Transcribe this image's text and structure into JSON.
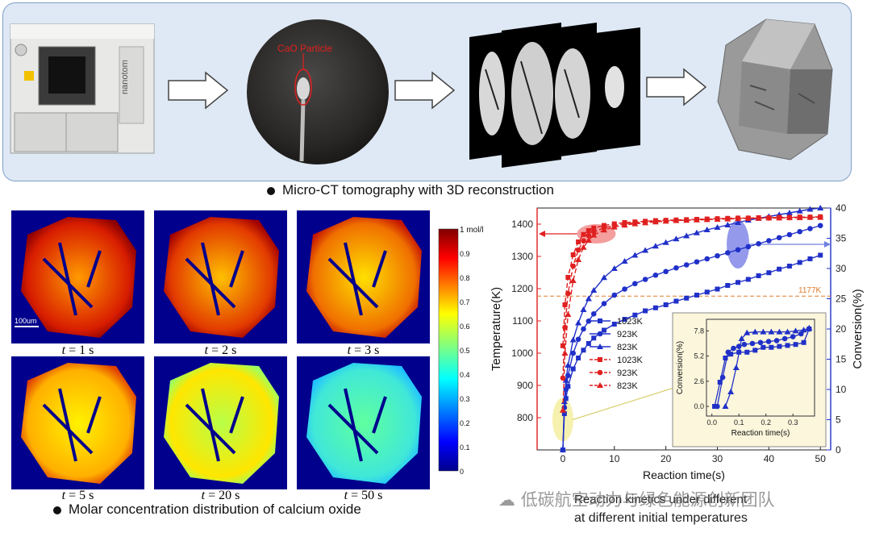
{
  "top_caption": "Micro-CT tomography with 3D reconstruction",
  "machine_brand": "nanotom",
  "sample_label": "CaO Particle",
  "maps": {
    "labels": [
      {
        "t": "t",
        "eq": " = 1 s"
      },
      {
        "t": "t",
        "eq": " = 2 s"
      },
      {
        "t": "t",
        "eq": " = 3 s"
      },
      {
        "t": "t",
        "eq": " = 5 s"
      },
      {
        "t": "t",
        "eq": " = 20 s"
      },
      {
        "t": "t",
        "eq": " = 50 s"
      }
    ],
    "scale_bar": "100um",
    "colorbar_unit": "1 mol/l",
    "colorbar_ticks": [
      "0.9",
      "0.8",
      "0.7",
      "0.6",
      "0.5",
      "0.4",
      "0.3",
      "0.2",
      "0.1",
      "0"
    ],
    "caption": "Molar concentration distribution of calcium oxide"
  },
  "chart_data": {
    "type": "line",
    "xlabel": "Reaction time(s)",
    "ylabel_left": "Temperature(K)",
    "ylabel_right": "Conversion(%)",
    "xlim": [
      -5,
      52
    ],
    "ylim_left": [
      700,
      1450
    ],
    "ylim_right": [
      0,
      40
    ],
    "x_ticks": [
      "0",
      "10",
      "20",
      "30",
      "40",
      "50"
    ],
    "y_left_ticks": [
      "800",
      "900",
      "1000",
      "1100",
      "1200",
      "1300",
      "1400"
    ],
    "y_right_ticks": [
      "0",
      "5",
      "10",
      "15",
      "20",
      "25",
      "30",
      "35",
      "40"
    ],
    "reference_line": {
      "value": 1177,
      "label": "1177K",
      "color": "#e07b2a"
    },
    "colors": {
      "temperature": "#e02020",
      "conversion": "#2030c8"
    },
    "legend": [
      {
        "label": "1023K",
        "marker": "square",
        "style": "solid"
      },
      {
        "label": "923K",
        "marker": "circle",
        "style": "solid"
      },
      {
        "label": "823K",
        "marker": "triangle",
        "style": "solid"
      },
      {
        "label": "1023K",
        "marker": "square",
        "style": "dashed"
      },
      {
        "label": "923K",
        "marker": "circle",
        "style": "dashed"
      },
      {
        "label": "823K",
        "marker": "triangle",
        "style": "dashed"
      }
    ],
    "conversion_series": [
      {
        "name": "1023K",
        "marker": "square",
        "points": [
          [
            0,
            0
          ],
          [
            0.3,
            6
          ],
          [
            0.6,
            8.5
          ],
          [
            1,
            10.5
          ],
          [
            2,
            13.4
          ],
          [
            3,
            15.2
          ],
          [
            4,
            16.5
          ],
          [
            5,
            17.6
          ],
          [
            6,
            18.5
          ],
          [
            8,
            19.8
          ],
          [
            10,
            20.8
          ],
          [
            12,
            21.6
          ],
          [
            14,
            22.3
          ],
          [
            16,
            23
          ],
          [
            18,
            23.5
          ],
          [
            20,
            24
          ],
          [
            22,
            24.6
          ],
          [
            24,
            25.1
          ],
          [
            26,
            25.6
          ],
          [
            28,
            26.1
          ],
          [
            30,
            26.6
          ],
          [
            32,
            27.2
          ],
          [
            34,
            27.7
          ],
          [
            36,
            28.2
          ],
          [
            38,
            28.8
          ],
          [
            40,
            29.3
          ],
          [
            42,
            29.9
          ],
          [
            44,
            30.4
          ],
          [
            46,
            31
          ],
          [
            48,
            31.6
          ],
          [
            50,
            32.2
          ]
        ]
      },
      {
        "name": "923K",
        "marker": "circle",
        "points": [
          [
            0,
            0
          ],
          [
            0.3,
            7
          ],
          [
            0.6,
            10
          ],
          [
            1,
            12.3
          ],
          [
            2,
            16
          ],
          [
            3,
            18.3
          ],
          [
            4,
            20
          ],
          [
            5,
            21.3
          ],
          [
            6,
            22.5
          ],
          [
            8,
            24.2
          ],
          [
            10,
            25.6
          ],
          [
            12,
            26.6
          ],
          [
            14,
            27.5
          ],
          [
            16,
            28.2
          ],
          [
            18,
            28.9
          ],
          [
            20,
            29.5
          ],
          [
            22,
            30.1
          ],
          [
            24,
            30.6
          ],
          [
            26,
            31.1
          ],
          [
            28,
            31.6
          ],
          [
            30,
            32.1
          ],
          [
            32,
            32.6
          ],
          [
            34,
            33.1
          ],
          [
            36,
            33.6
          ],
          [
            38,
            34.1
          ],
          [
            40,
            34.6
          ],
          [
            42,
            35.1
          ],
          [
            44,
            35.6
          ],
          [
            46,
            36.1
          ],
          [
            48,
            36.6
          ],
          [
            50,
            37.1
          ]
        ]
      },
      {
        "name": "823K",
        "marker": "triangle",
        "points": [
          [
            0,
            0
          ],
          [
            0.3,
            8
          ],
          [
            0.6,
            11.5
          ],
          [
            1,
            14
          ],
          [
            2,
            18.2
          ],
          [
            3,
            21
          ],
          [
            4,
            23.2
          ],
          [
            5,
            25
          ],
          [
            6,
            26.4
          ],
          [
            8,
            28.5
          ],
          [
            10,
            30
          ],
          [
            12,
            31.2
          ],
          [
            14,
            32.2
          ],
          [
            16,
            33
          ],
          [
            18,
            33.7
          ],
          [
            20,
            34.3
          ],
          [
            22,
            34.9
          ],
          [
            24,
            35.4
          ],
          [
            26,
            35.9
          ],
          [
            28,
            36.4
          ],
          [
            30,
            36.8
          ],
          [
            32,
            37.2
          ],
          [
            34,
            37.6
          ],
          [
            36,
            38
          ],
          [
            38,
            38.3
          ],
          [
            40,
            38.6
          ],
          [
            42,
            38.9
          ],
          [
            44,
            39.2
          ],
          [
            46,
            39.5
          ],
          [
            48,
            39.8
          ],
          [
            50,
            40
          ]
        ]
      }
    ],
    "temperature_series": [
      {
        "name": "1023K",
        "marker": "square",
        "points": [
          [
            0,
            1023
          ],
          [
            0.4,
            1150
          ],
          [
            1,
            1235
          ],
          [
            2,
            1305
          ],
          [
            3,
            1345
          ],
          [
            4,
            1368
          ],
          [
            5,
            1380
          ],
          [
            6,
            1388
          ],
          [
            8,
            1396
          ],
          [
            10,
            1401
          ],
          [
            12,
            1405
          ],
          [
            14,
            1407
          ],
          [
            16,
            1409
          ],
          [
            18,
            1411
          ],
          [
            20,
            1412
          ],
          [
            22,
            1413
          ],
          [
            24,
            1414
          ],
          [
            26,
            1415
          ],
          [
            28,
            1416
          ],
          [
            30,
            1417
          ],
          [
            32,
            1418
          ],
          [
            34,
            1419
          ],
          [
            36,
            1419
          ],
          [
            38,
            1420
          ],
          [
            40,
            1420
          ],
          [
            42,
            1421
          ],
          [
            44,
            1421
          ],
          [
            46,
            1422
          ],
          [
            48,
            1422
          ],
          [
            50,
            1423
          ]
        ]
      },
      {
        "name": "923K",
        "marker": "circle",
        "points": [
          [
            0,
            923
          ],
          [
            0.4,
            1080
          ],
          [
            1,
            1185
          ],
          [
            2,
            1270
          ],
          [
            3,
            1320
          ],
          [
            4,
            1348
          ],
          [
            5,
            1365
          ],
          [
            6,
            1376
          ],
          [
            8,
            1389
          ],
          [
            10,
            1396
          ],
          [
            12,
            1401
          ],
          [
            14,
            1404
          ],
          [
            16,
            1407
          ],
          [
            18,
            1409
          ],
          [
            20,
            1411
          ],
          [
            22,
            1412
          ],
          [
            24,
            1413
          ],
          [
            26,
            1414
          ],
          [
            28,
            1415
          ],
          [
            30,
            1416
          ],
          [
            32,
            1417
          ],
          [
            34,
            1418
          ],
          [
            36,
            1418
          ],
          [
            38,
            1419
          ],
          [
            40,
            1419
          ],
          [
            42,
            1420
          ],
          [
            44,
            1420
          ],
          [
            46,
            1421
          ],
          [
            48,
            1421
          ],
          [
            50,
            1422
          ]
        ]
      },
      {
        "name": "823K",
        "marker": "triangle",
        "points": [
          [
            0,
            823
          ],
          [
            0.4,
            1000
          ],
          [
            1,
            1120
          ],
          [
            2,
            1225
          ],
          [
            3,
            1290
          ],
          [
            4,
            1328
          ],
          [
            5,
            1350
          ],
          [
            6,
            1366
          ],
          [
            8,
            1382
          ],
          [
            10,
            1391
          ],
          [
            12,
            1397
          ],
          [
            14,
            1401
          ],
          [
            16,
            1404
          ],
          [
            18,
            1407
          ],
          [
            20,
            1409
          ],
          [
            22,
            1411
          ],
          [
            24,
            1412
          ],
          [
            26,
            1413
          ],
          [
            28,
            1414
          ],
          [
            30,
            1415
          ],
          [
            32,
            1416
          ],
          [
            34,
            1417
          ],
          [
            36,
            1418
          ],
          [
            38,
            1418
          ],
          [
            40,
            1419
          ],
          [
            42,
            1419
          ],
          [
            44,
            1420
          ],
          [
            46,
            1420
          ],
          [
            48,
            1421
          ],
          [
            50,
            1421
          ]
        ]
      }
    ],
    "inset": {
      "xlabel": "Reaction time(s)",
      "ylabel": "Conversion(%)",
      "xlim": [
        -0.02,
        0.38
      ],
      "ylim": [
        -1,
        9
      ],
      "x_ticks": [
        "0.0",
        "0.1",
        "0.2",
        "0.3"
      ],
      "y_ticks": [
        "0.0",
        "2.6",
        "5.2",
        "7.8"
      ],
      "series": [
        {
          "name": "1023K",
          "marker": "square",
          "points": [
            [
              0.01,
              0
            ],
            [
              0.03,
              2.5
            ],
            [
              0.05,
              5
            ],
            [
              0.07,
              5.4
            ],
            [
              0.1,
              5.6
            ],
            [
              0.13,
              5.6
            ],
            [
              0.16,
              5.8
            ],
            [
              0.19,
              6.1
            ],
            [
              0.22,
              6.1
            ],
            [
              0.25,
              6.2
            ],
            [
              0.28,
              6.3
            ],
            [
              0.31,
              6.4
            ],
            [
              0.34,
              6.6
            ],
            [
              0.36,
              8
            ]
          ]
        },
        {
          "name": "923K",
          "marker": "circle",
          "points": [
            [
              0.02,
              0
            ],
            [
              0.04,
              3
            ],
            [
              0.06,
              5.6
            ],
            [
              0.08,
              6
            ],
            [
              0.1,
              6.2
            ],
            [
              0.12,
              6.4
            ],
            [
              0.15,
              6.5
            ],
            [
              0.18,
              6.6
            ],
            [
              0.21,
              6.7
            ],
            [
              0.24,
              6.8
            ],
            [
              0.27,
              7
            ],
            [
              0.3,
              7.2
            ],
            [
              0.33,
              7.5
            ],
            [
              0.36,
              8
            ]
          ]
        },
        {
          "name": "823K",
          "marker": "triangle",
          "points": [
            [
              0.05,
              0
            ],
            [
              0.07,
              1.5
            ],
            [
              0.09,
              4
            ],
            [
              0.11,
              7
            ],
            [
              0.13,
              7.6
            ],
            [
              0.16,
              7.7
            ],
            [
              0.19,
              7.7
            ],
            [
              0.22,
              7.7
            ],
            [
              0.25,
              7.7
            ],
            [
              0.28,
              7.7
            ],
            [
              0.31,
              7.8
            ],
            [
              0.34,
              7.9
            ],
            [
              0.36,
              8.1
            ]
          ]
        }
      ]
    }
  },
  "chart_caption_line1": "Reaction kinetics under different",
  "chart_caption_line2": "at different initial temperatures",
  "watermark": "低碳航空动力与绿色能源创新团队"
}
